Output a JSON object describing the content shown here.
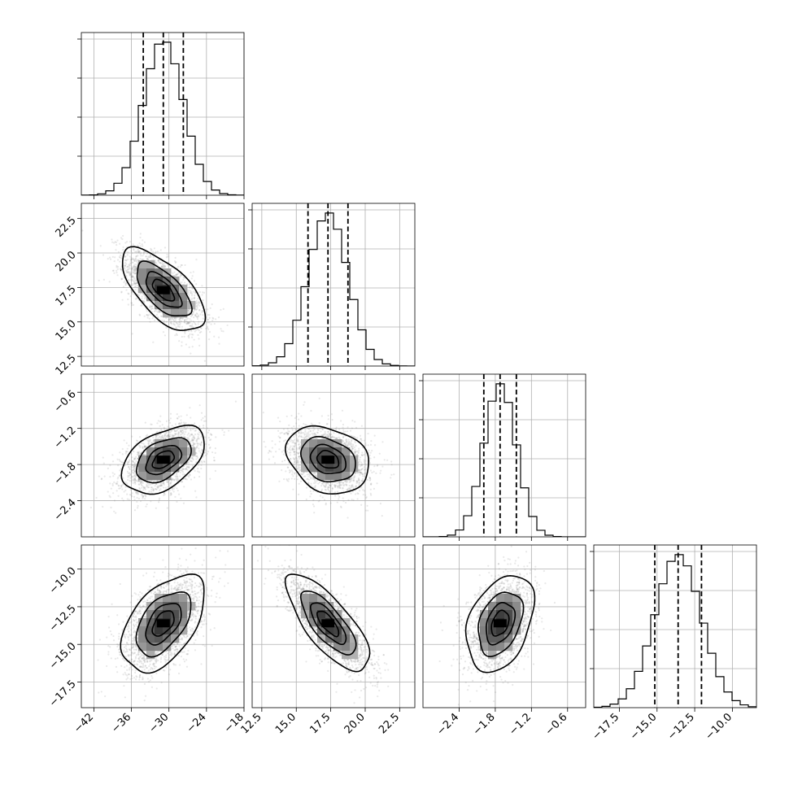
{
  "chart_data": {
    "type": "corner",
    "parameters": [
      {
        "id": "p0",
        "range": [
          -44,
          -18
        ],
        "ticks": [
          -42,
          -36,
          -30,
          -24,
          -18
        ],
        "tick_labels": [
          "−42",
          "−36",
          "−30",
          "−24",
          "−18"
        ],
        "mean": -30.9,
        "sd": 3.2,
        "quantiles": [
          -34.1,
          -30.9,
          -27.7
        ]
      },
      {
        "id": "p1",
        "range": [
          11.8,
          23.6
        ],
        "ticks": [
          12.5,
          15.0,
          17.5,
          20.0,
          22.5
        ],
        "tick_labels": [
          "12.5",
          "15.0",
          "17.5",
          "20.0",
          "22.5"
        ],
        "mean": 17.3,
        "sd": 1.45,
        "quantiles": [
          15.85,
          17.3,
          18.75
        ]
      },
      {
        "id": "p2",
        "range": [
          -3.0,
          -0.3
        ],
        "ticks": [
          -2.4,
          -1.8,
          -1.2,
          -0.6
        ],
        "tick_labels": [
          "−2.4",
          "−1.8",
          "−1.2",
          "−0.6"
        ],
        "mean": -1.72,
        "sd": 0.27,
        "quantiles": [
          -1.99,
          -1.72,
          -1.45
        ]
      },
      {
        "id": "p3",
        "range": [
          -19.2,
          -8.4
        ],
        "ticks": [
          -17.5,
          -15.0,
          -12.5,
          -10.0
        ],
        "tick_labels": [
          "−17.5",
          "−15.0",
          "−12.5",
          "−10.0"
        ],
        "mean": -13.6,
        "sd": 1.55,
        "quantiles": [
          -15.15,
          -13.6,
          -12.05
        ]
      }
    ],
    "correlations": {
      "1,0": -0.65,
      "2,0": 0.45,
      "2,1": -0.25,
      "3,0": 0.5,
      "3,1": -0.75,
      "3,2": 0.35
    },
    "histogram_bins": 20,
    "histogram_yticks": 4,
    "contour_sigma_levels": [
      0.5,
      1.0,
      1.5,
      2.0
    ],
    "samples_per_panel": 2200,
    "grid": true,
    "colors": {
      "samples": "#7f7f7f",
      "density": "#000000",
      "grid": "#b0b0b0"
    }
  }
}
